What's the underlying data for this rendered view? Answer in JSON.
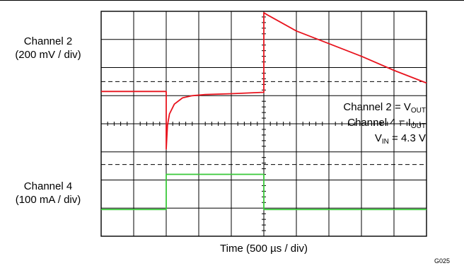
{
  "chart_data": {
    "type": "line",
    "title": "",
    "xlabel": "Time (500 µs / div)",
    "divisions": {
      "x": 10,
      "y": 8
    },
    "labels": {
      "ch2_name": "Channel 2",
      "ch2_scale": "(200 mV / div)",
      "ch4_name": "Channel 4",
      "ch4_scale": "(100 mA / div)"
    },
    "annotations": [
      {
        "main": "Channel 2 = V",
        "sub": "OUT"
      },
      {
        "main": "Channel 4 = I",
        "sub": "OUT"
      },
      {
        "main": "V",
        "sub": "IN",
        "tail": " = 4.3 V"
      }
    ],
    "figure_id": "G025",
    "reference_levels_div": [
      2.5,
      5.45
    ],
    "series": [
      {
        "name": "Channel 2",
        "color": "#e8141e",
        "x_div": [
          0,
          2.0,
          2.0,
          2.04,
          2.1,
          2.25,
          2.5,
          2.8,
          3.2,
          4.0,
          5.0,
          5.0,
          5.0,
          5.1,
          6.0,
          7.0,
          8.0,
          9.0,
          10.0
        ],
        "y_div": [
          2.85,
          2.85,
          4.9,
          4.05,
          3.65,
          3.3,
          3.08,
          3.0,
          2.96,
          2.93,
          2.88,
          2.88,
          0.05,
          0.12,
          0.7,
          1.15,
          1.6,
          2.1,
          2.55
        ]
      },
      {
        "name": "Channel 4",
        "color": "#3ac83a",
        "x_div": [
          0,
          2.0,
          2.0,
          5.0,
          5.0,
          10.0
        ],
        "y_div": [
          7.05,
          7.05,
          5.8,
          5.8,
          7.05,
          7.05
        ]
      }
    ]
  }
}
